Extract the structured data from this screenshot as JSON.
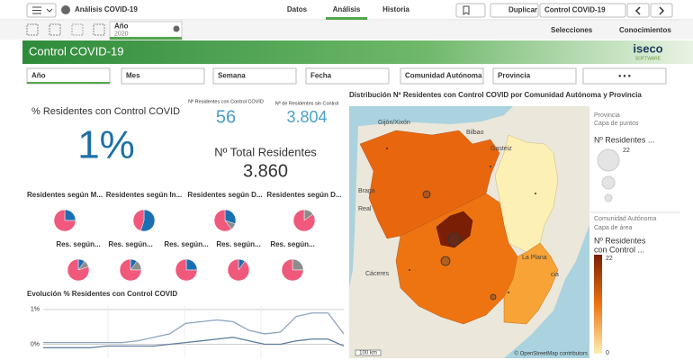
{
  "toolbar": {
    "app_title": "Análisis COVID-19",
    "tabs": [
      "Datos",
      "Análisis",
      "Historia"
    ],
    "duplicate": "Duplicar",
    "sheet": "Control COVID-19"
  },
  "selections": {
    "field": "Año",
    "value": "2020",
    "selections_button": "Selecciones",
    "insights_button": "Conocimientos"
  },
  "sheet_header": {
    "title": "Control COVID-19",
    "logo": "iseco",
    "logo_sub": "SOFTWARE"
  },
  "filters": [
    "Año",
    "Mes",
    "Semana",
    "Fecha",
    "Comunidad Autónoma",
    "Provincia"
  ],
  "kpis": {
    "pct_title": "% Residentes con Control COVID",
    "pct_value": "1%",
    "with_title": "Nº Residentes con Control COVID",
    "with_value": "56",
    "without_title": "Nº de Residentes sin Control",
    "without_value": "3.804",
    "total_title": "Nº Total Residentes",
    "total_value": "3.860"
  },
  "pies": {
    "slice_colors": [
      "#1a6fb3",
      "#8c8c8c",
      "#f0587c"
    ],
    "items": [
      {
        "title": "Residentes según M...",
        "values": [
          25,
          0,
          75
        ]
      },
      {
        "title": "Residentes según In...",
        "values": [
          55,
          0,
          45
        ]
      },
      {
        "title": "Residentes según D...",
        "values": [
          30,
          10,
          60
        ]
      },
      {
        "title": "Residentes según D...",
        "values": [
          0,
          15,
          85
        ]
      },
      {
        "title": "Res. según...",
        "values": [
          10,
          10,
          80
        ]
      },
      {
        "title": "Res. según...",
        "values": [
          10,
          15,
          75
        ]
      },
      {
        "title": "Res. según...",
        "values": [
          25,
          0,
          75
        ]
      },
      {
        "title": "Res. según...",
        "values": [
          10,
          0,
          90
        ]
      },
      {
        "title": "Res. según...",
        "values": [
          0,
          25,
          75
        ]
      }
    ]
  },
  "line_chart": {
    "title": "Evolución % Residentes con Control COVID",
    "ylim": [
      -0.4,
      1.1
    ],
    "yticks": [
      {
        "value": 1,
        "label": "1%"
      },
      {
        "value": 0,
        "label": "0%"
      }
    ],
    "series": [
      {
        "color": "#8ea3bf",
        "values": [
          0.05,
          0.05,
          0.05,
          0.05,
          0.05,
          0.05,
          0.1,
          0.2,
          0.3,
          0.6,
          0.65,
          0.7,
          0.65,
          0.4,
          0.3,
          0.35,
          0.8,
          0.9,
          0.9,
          0.3
        ]
      },
      {
        "color": "#5f7c9e",
        "values": [
          -0.1,
          -0.1,
          -0.1,
          -0.1,
          -0.05,
          -0.05,
          -0.05,
          -0.05,
          0,
          0.05,
          0.1,
          0.15,
          0.2,
          0.1,
          0,
          0,
          0.1,
          0.15,
          0.15,
          -0.05
        ]
      }
    ]
  },
  "map": {
    "title": "Distribución Nº Residentes con Control COVID por Comunidad Autónoma y Provincia",
    "places": [
      "Gijón/Xixón",
      "Bilbao",
      "Gasteiz",
      "Braga",
      "Real",
      "Cáceres",
      "cia",
      "La Plana"
    ],
    "scale": "100 km",
    "attribution": "© OpenStreetMap contributors",
    "legend": {
      "point_layer_title": "Provincia",
      "point_layer_sub": "Capa de puntos",
      "point_measure": "Nº Residentes ...",
      "point_max": "22",
      "area_layer_title": "Comunidad Autónoma",
      "area_layer_sub": "Capa de área",
      "area_measure_1": "Nº Residentes",
      "area_measure_2": "con Control ...",
      "area_max": "22",
      "area_min": "0"
    }
  }
}
